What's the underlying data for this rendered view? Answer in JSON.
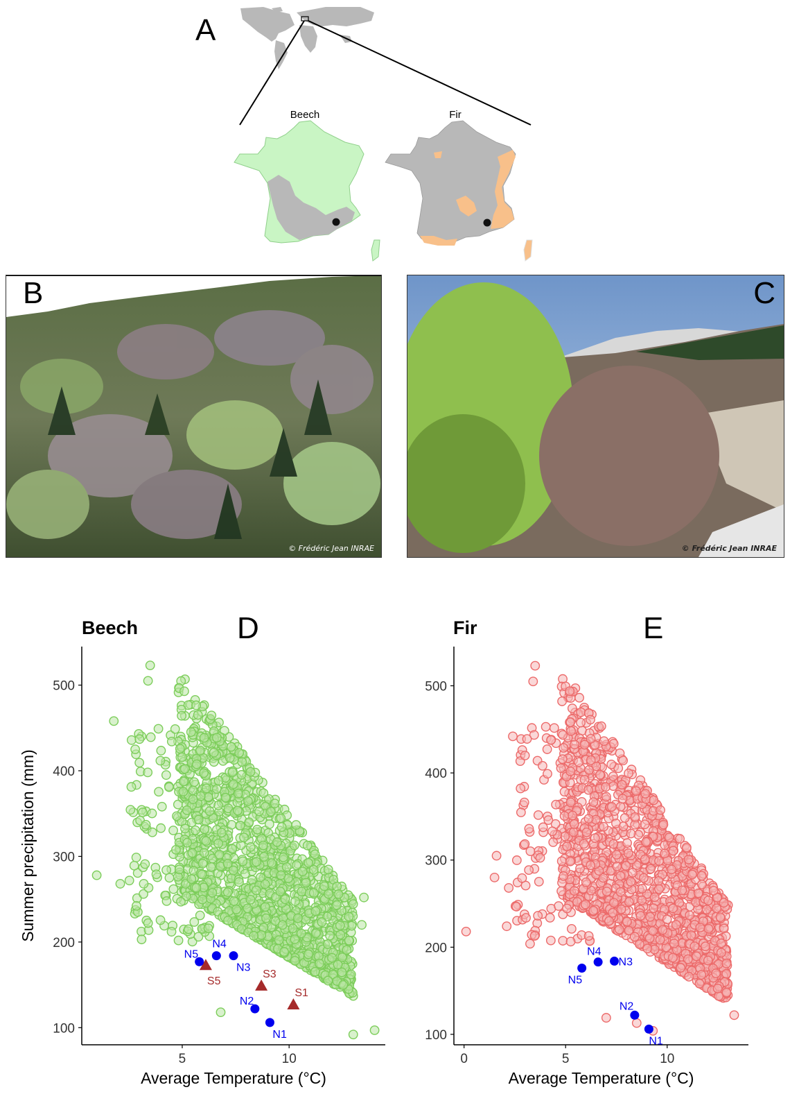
{
  "panels": {
    "a": {
      "letter": "A",
      "map_beech_label": "Beech",
      "map_fir_label": "Fir"
    },
    "b": {
      "letter": "B",
      "credit": "© Frédéric Jean INRAE"
    },
    "c": {
      "letter": "C",
      "credit": "© Frédéric Jean INRAE"
    },
    "d": {
      "letter": "D"
    },
    "e": {
      "letter": "E"
    }
  },
  "colors": {
    "beech_points": "#7ccd5a",
    "beech_fill": "#b9e6a4",
    "fir_points": "#ec6a6a",
    "fir_fill": "#f6b6b6",
    "beech_range": "#c9f5c4",
    "fir_range": "#f8c08a",
    "land": "#b8b8b8",
    "north_sites": "#0000ee",
    "south_sites": "#a52a2a"
  },
  "chart_data": [
    {
      "type": "scatter",
      "id": "beech",
      "title": "Beech",
      "panel": "D",
      "xlabel": "Average Temperature (°C)",
      "ylabel": "Summer precipitation (mm)",
      "xlim": [
        0.3,
        14.5
      ],
      "ylim": [
        80,
        545
      ],
      "xticks": [
        5,
        10
      ],
      "yticks": [
        100,
        200,
        300,
        400,
        500
      ],
      "envelope": {
        "description": "dense cloud of climate points",
        "outliers": [
          [
            1.0,
            278
          ],
          [
            1.8,
            458
          ],
          [
            2.1,
            268
          ],
          [
            2.8,
            425
          ],
          [
            3.0,
            437
          ],
          [
            3.1,
            203
          ],
          [
            3.2,
            268
          ],
          [
            3.4,
            505
          ],
          [
            3.5,
            523
          ],
          [
            3.3,
            337
          ],
          [
            4.0,
            333
          ],
          [
            4.5,
            212
          ],
          [
            4.4,
            275
          ],
          [
            6.8,
            118
          ],
          [
            13.0,
            92
          ],
          [
            14.0,
            97
          ],
          [
            13.5,
            252
          ],
          [
            13.4,
            220
          ]
        ]
      },
      "north_sites": [
        {
          "label": "N1",
          "x": 9.1,
          "y": 106
        },
        {
          "label": "N2",
          "x": 8.4,
          "y": 122
        },
        {
          "label": "N3",
          "x": 7.4,
          "y": 184
        },
        {
          "label": "N4",
          "x": 6.6,
          "y": 184
        },
        {
          "label": "N5",
          "x": 5.8,
          "y": 177
        }
      ],
      "south_sites": [
        {
          "label": "S1",
          "x": 10.2,
          "y": 127
        },
        {
          "label": "S3",
          "x": 8.7,
          "y": 149
        },
        {
          "label": "S5",
          "x": 6.1,
          "y": 173
        }
      ]
    },
    {
      "type": "scatter",
      "id": "fir",
      "title": "Fir",
      "panel": "E",
      "xlabel": "Average Temperature (°C)",
      "ylabel": "",
      "xlim": [
        -0.5,
        14.0
      ],
      "ylim": [
        88,
        545
      ],
      "xticks": [
        0,
        5,
        10
      ],
      "yticks": [
        100,
        200,
        300,
        400,
        500
      ],
      "envelope": {
        "description": "dense cloud of climate points",
        "outliers": [
          [
            0.1,
            218
          ],
          [
            1.5,
            280
          ],
          [
            1.6,
            305
          ],
          [
            2.1,
            224
          ],
          [
            2.2,
            268
          ],
          [
            2.4,
            442
          ],
          [
            3.0,
            420
          ],
          [
            3.1,
            439
          ],
          [
            3.4,
            505
          ],
          [
            3.5,
            523
          ],
          [
            3.2,
            336
          ],
          [
            7.0,
            119
          ],
          [
            8.5,
            113
          ],
          [
            9.3,
            104
          ],
          [
            13.3,
            122
          ],
          [
            12.4,
            170
          ]
        ]
      },
      "north_sites": [
        {
          "label": "N1",
          "x": 9.1,
          "y": 106
        },
        {
          "label": "N2",
          "x": 8.4,
          "y": 122
        },
        {
          "label": "N3",
          "x": 7.4,
          "y": 184
        },
        {
          "label": "N4",
          "x": 6.6,
          "y": 183
        },
        {
          "label": "N5",
          "x": 5.8,
          "y": 176
        }
      ],
      "south_sites": []
    }
  ]
}
